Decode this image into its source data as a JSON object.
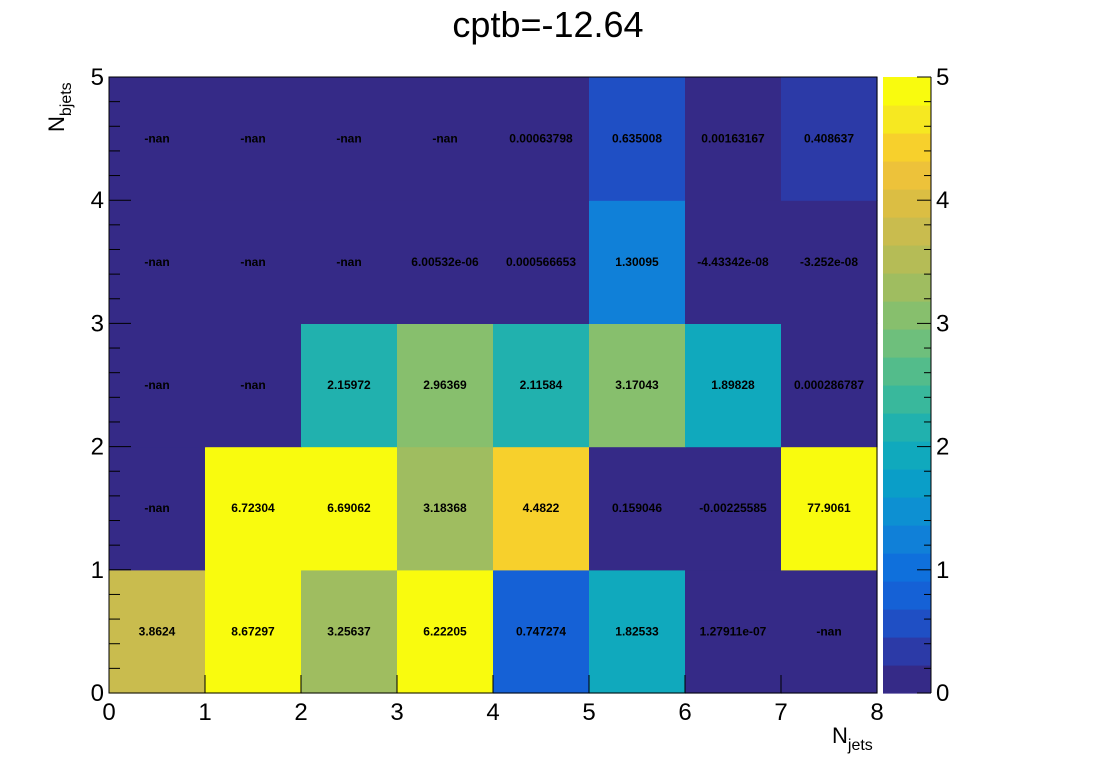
{
  "chart_data": {
    "type": "heatmap",
    "title": "cptb=-12.64",
    "xlabel": {
      "main": "N",
      "sub": "jets"
    },
    "ylabel": {
      "main": "N",
      "sub": "bjets"
    },
    "xlim": [
      0,
      8
    ],
    "ylim": [
      0,
      5
    ],
    "zlim": [
      0,
      5
    ],
    "x_ticks": [
      "0",
      "1",
      "2",
      "3",
      "4",
      "5",
      "6",
      "7",
      "8"
    ],
    "y_ticks": [
      "0",
      "1",
      "2",
      "3",
      "4",
      "5"
    ],
    "z_ticks": [
      "0",
      "1",
      "2",
      "3",
      "4",
      "5"
    ],
    "x_bins": [
      0,
      1,
      2,
      3,
      4,
      5,
      6,
      7
    ],
    "y_bins": [
      0,
      1,
      2,
      3,
      4
    ],
    "cells": [
      {
        "row": 0,
        "labels": [
          "3.8624",
          "8.67297",
          "3.25637",
          "6.22205",
          "0.747274",
          "1.82533",
          "1.27911e-07",
          "-nan"
        ],
        "values": [
          3.8624,
          8.67297,
          3.25637,
          6.22205,
          0.747274,
          1.82533,
          1.27911e-07,
          null
        ]
      },
      {
        "row": 1,
        "labels": [
          "-nan",
          "6.72304",
          "6.69062",
          "3.18368",
          "4.4822",
          "0.159046",
          "-0.00225585",
          "77.9061"
        ],
        "values": [
          null,
          6.72304,
          6.69062,
          3.18368,
          4.4822,
          0.159046,
          -0.00225585,
          77.9061
        ]
      },
      {
        "row": 2,
        "labels": [
          "-nan",
          "-nan",
          "2.15972",
          "2.96369",
          "2.11584",
          "3.17043",
          "1.89828",
          "0.000286787"
        ],
        "values": [
          null,
          null,
          2.15972,
          2.96369,
          2.11584,
          3.17043,
          1.89828,
          0.000286787
        ]
      },
      {
        "row": 3,
        "labels": [
          "-nan",
          "-nan",
          "-nan",
          "6.00532e-06",
          "0.000566653",
          "1.30095",
          "-4.43342e-08",
          "-3.252e-08"
        ],
        "values": [
          null,
          null,
          null,
          6.00532e-06,
          0.000566653,
          1.30095,
          -4.43342e-08,
          -3.252e-08
        ]
      },
      {
        "row": 4,
        "labels": [
          "-nan",
          "-nan",
          "-nan",
          "-nan",
          "0.00063798",
          "0.635008",
          "0.00163167",
          "0.408637"
        ],
        "values": [
          null,
          null,
          null,
          null,
          0.00063798,
          0.635008,
          0.00163167,
          0.408637
        ]
      }
    ],
    "palette": [
      "#352a87",
      "#2c3aa7",
      "#1f4fc4",
      "#1561d6",
      "#0f70dc",
      "#1080d8",
      "#0d90d2",
      "#0a9ec8",
      "#10a9bd",
      "#21b1ae",
      "#39b89c",
      "#53bc8b",
      "#6ebf7c",
      "#87bf6d",
      "#9fbd60",
      "#b5bc56",
      "#c9bc4e",
      "#dbbe43",
      "#edc23a",
      "#f7d02c",
      "#f6e821",
      "#f9fb0e"
    ],
    "empty_color": "#352a87",
    "grid": false,
    "legend": "colorbar-right"
  }
}
